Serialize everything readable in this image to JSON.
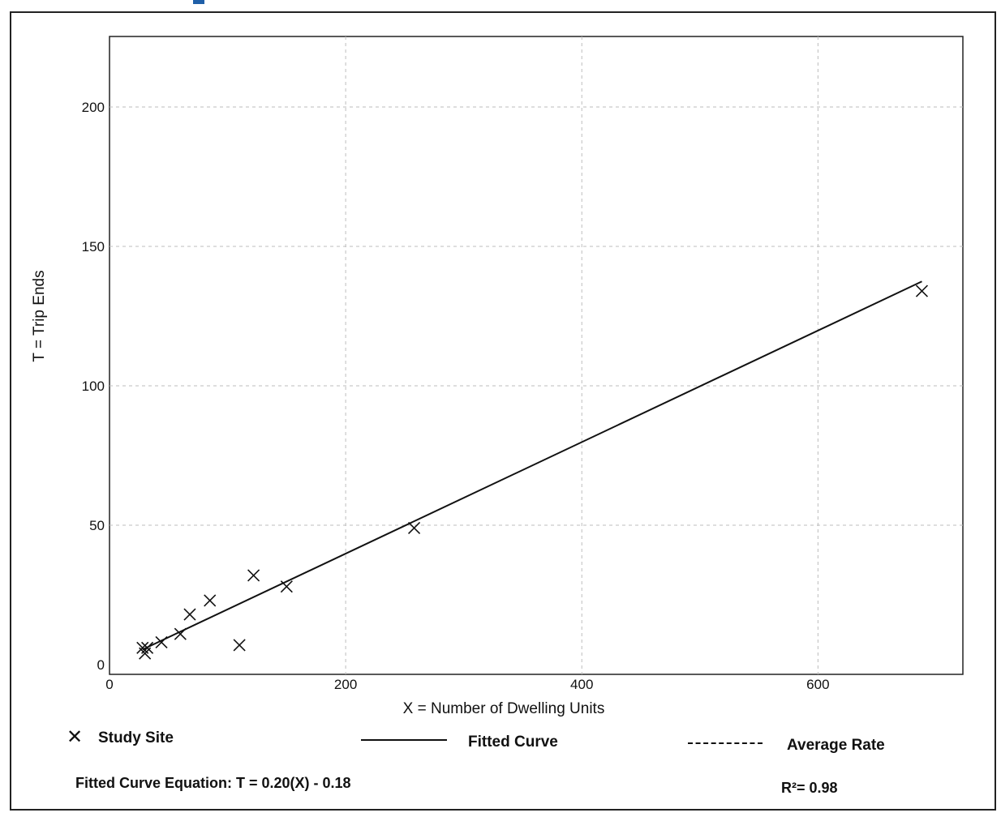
{
  "chart_data": {
    "type": "scatter",
    "title": "",
    "xlabel": "X = Number of Dwelling Units",
    "ylabel": "T = Trip Ends",
    "xlim": [
      0,
      715
    ],
    "ylim": [
      0,
      225
    ],
    "x_ticks": [
      0,
      200,
      400,
      600
    ],
    "y_ticks": [
      0,
      50,
      100,
      150,
      200
    ],
    "grid": true,
    "series": [
      {
        "name": "Study Site",
        "marker": "x",
        "points": [
          [
            28,
            6
          ],
          [
            30,
            4
          ],
          [
            32,
            6
          ],
          [
            44,
            8
          ],
          [
            60,
            11
          ],
          [
            68,
            18
          ],
          [
            85,
            23
          ],
          [
            110,
            7
          ],
          [
            122,
            32
          ],
          [
            150,
            28
          ],
          [
            258,
            49
          ],
          [
            688,
            134
          ]
        ]
      },
      {
        "name": "Fitted Curve",
        "style": "solid",
        "points": [
          [
            28,
            5.42
          ],
          [
            688,
            137.42
          ]
        ]
      },
      {
        "name": "Average Rate",
        "style": "dashed",
        "points": []
      }
    ],
    "legend_placement": "bottom",
    "legend": {
      "study_site": "Study Site",
      "fitted_curve": "Fitted Curve",
      "average_rate": "Average Rate"
    },
    "annotations": {
      "equation": "Fitted Curve Equation: T = 0.20(X) - 0.18",
      "r_squared": "R²= 0.98"
    },
    "colors": {
      "line": "#111111",
      "grid": "#bdbdbd",
      "accent": "#1f5fa8"
    }
  }
}
